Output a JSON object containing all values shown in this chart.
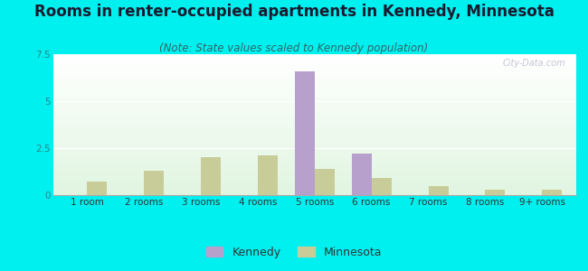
{
  "title": "Rooms in renter-occupied apartments in Kennedy, Minnesota",
  "subtitle": "(Note: State values scaled to Kennedy population)",
  "categories": [
    "1 room",
    "2 rooms",
    "3 rooms",
    "4 rooms",
    "5 rooms",
    "6 rooms",
    "7 rooms",
    "8 rooms",
    "9+ rooms"
  ],
  "kennedy_values": [
    0,
    0,
    0,
    0,
    6.6,
    2.2,
    0,
    0,
    0
  ],
  "minnesota_values": [
    0.7,
    1.3,
    2.0,
    2.1,
    1.4,
    0.9,
    0.5,
    0.3,
    0.3
  ],
  "kennedy_color": "#b8a0cc",
  "minnesota_color": "#c8cc99",
  "background_color": "#00f0f0",
  "ylim": [
    0,
    7.5
  ],
  "yticks": [
    0,
    2.5,
    5,
    7.5
  ],
  "bar_width": 0.35,
  "title_fontsize": 12,
  "subtitle_fontsize": 8.5,
  "tick_fontsize": 7.5,
  "legend_fontsize": 9
}
